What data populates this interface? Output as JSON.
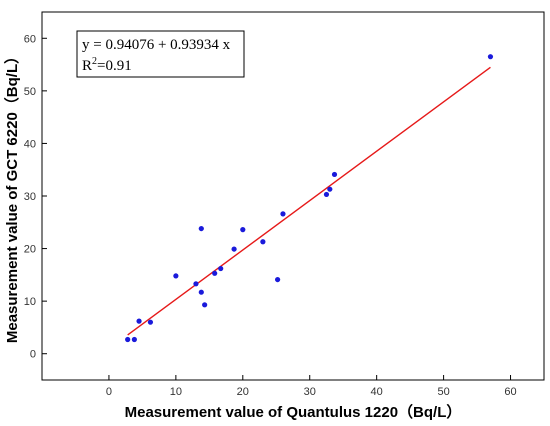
{
  "chart_data": {
    "type": "scatter",
    "xlabel": "Measurement value of Quantulus 1220（Bq/L）",
    "ylabel": "Measurement value of GCT 6220（Bq/L）",
    "xlim": [
      -10,
      65
    ],
    "ylim": [
      -5,
      65
    ],
    "x_ticks": [
      "0",
      "10",
      "20",
      "30",
      "40",
      "50",
      "60"
    ],
    "y_ticks": [
      "0",
      "10",
      "20",
      "30",
      "40",
      "50",
      "60"
    ],
    "grid": false,
    "series": [
      {
        "x": [
          2.8,
          3.8,
          4.5,
          6.2,
          10.0,
          13.0,
          13.8,
          13.8,
          14.3,
          15.8,
          16.7,
          18.7,
          20.0,
          23.0,
          25.2,
          26.0,
          32.5,
          33.0,
          33.7,
          57.0
        ],
        "y": [
          2.7,
          2.7,
          6.2,
          6.0,
          14.8,
          13.3,
          11.7,
          23.8,
          9.3,
          15.3,
          16.2,
          19.9,
          23.6,
          21.3,
          14.1,
          26.6,
          30.3,
          31.3,
          34.1,
          56.5
        ],
        "color": "#1a1adb"
      }
    ],
    "fit_line": {
      "intercept": 0.94076,
      "slope": 0.93934,
      "x_range": [
        2.8,
        57.0
      ],
      "color": "#e61919"
    },
    "annotation": {
      "equation": "y = 0.94076 + 0.93934 x",
      "r2_prefix": "R",
      "r2_sup": "2",
      "r2_value": "=0.91"
    }
  }
}
